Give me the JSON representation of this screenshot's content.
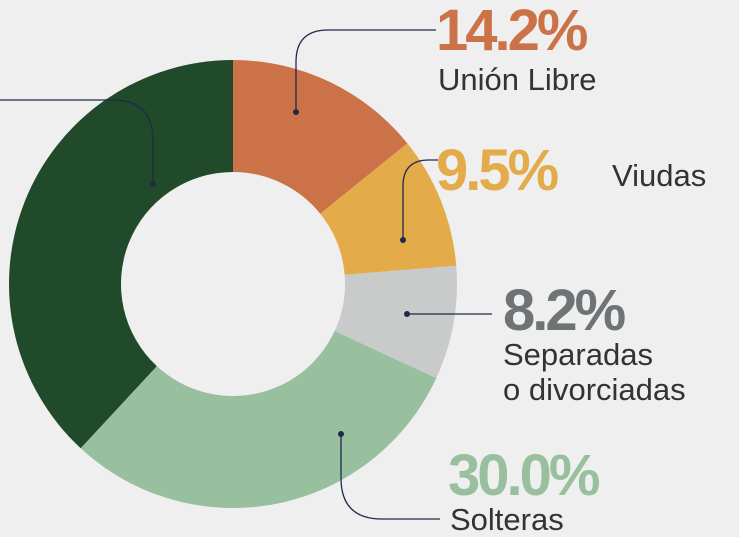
{
  "chart_data": {
    "type": "pie",
    "categories": [
      "Unión Libre",
      "Viudas",
      "Separadas\no divorciadas",
      "Solteras",
      null
    ],
    "values": [
      14.2,
      9.5,
      8.2,
      30.0,
      38.1
    ],
    "value_labels": [
      "14.2%",
      "9.5%",
      "8.2%",
      "30.0%",
      null
    ],
    "colors": [
      "#cc7249",
      "#e3ab4a",
      "#c9cbcb",
      "#98bf9e",
      "#214a2a"
    ]
  }
}
